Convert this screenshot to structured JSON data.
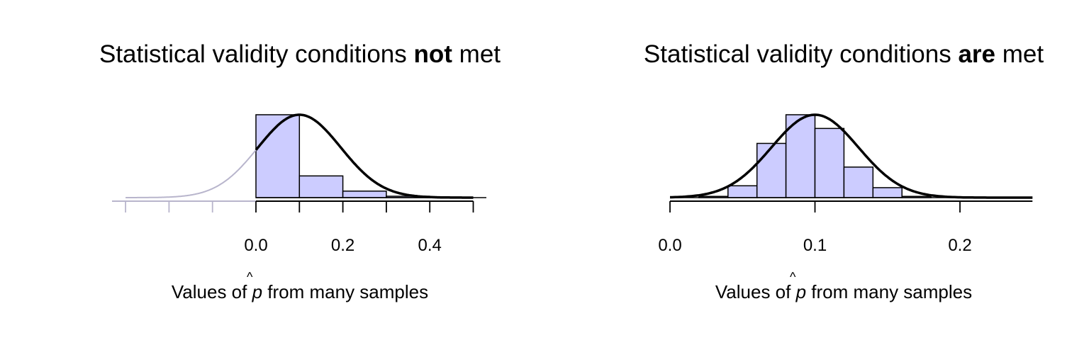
{
  "chart_data": [
    {
      "type": "bar",
      "title_parts": [
        "Statistical validity conditions ",
        "not",
        " met"
      ],
      "xlabel_parts": [
        "Values of ",
        "p",
        " from many samples"
      ],
      "xlabel_hat": "^",
      "bin_edges": [
        0.0,
        0.1,
        0.2,
        0.3,
        0.4
      ],
      "values": [
        4.2,
        1.1,
        0.33,
        0.07
      ],
      "normal_curve": {
        "mean": 0.1,
        "sd": 0.095,
        "x_range": [
          -0.3,
          0.5
        ],
        "gray_below": 0.0
      },
      "xticks": [
        -0.3,
        -0.2,
        -0.1,
        0.0,
        0.1,
        0.2,
        0.3,
        0.4,
        0.5
      ],
      "xtick_labels": {
        "0.0": "0.0",
        "0.2": "0.2",
        "0.4": "0.4"
      },
      "xlim": [
        -0.33,
        0.53
      ],
      "grid": false,
      "colors": {
        "bar_fill": "#ccccff",
        "curve": "#000000",
        "curve_outside": "#b8b5cc",
        "axis_outside": "#b8b5cc"
      }
    },
    {
      "type": "bar",
      "title_parts": [
        "Statistical validity conditions ",
        "are",
        " met"
      ],
      "xlabel_parts": [
        "Values of ",
        "p",
        " from many samples"
      ],
      "xlabel_hat": "^",
      "bin_edges": [
        0.02,
        0.04,
        0.06,
        0.08,
        0.1,
        0.12,
        0.14,
        0.16,
        0.18
      ],
      "values": [
        0.2,
        1.9,
        8.7,
        13.3,
        11.1,
        4.9,
        1.6,
        0.2
      ],
      "normal_curve": {
        "mean": 0.1,
        "sd": 0.03,
        "x_range": [
          0.0,
          0.25
        ]
      },
      "xticks": [
        0.0,
        0.1,
        0.2
      ],
      "xtick_labels": {
        "0.0": "0.0",
        "0.1": "0.1",
        "0.2": "0.2"
      },
      "xlim": [
        0.0,
        0.25
      ],
      "grid": false,
      "colors": {
        "bar_fill": "#ccccff",
        "curve": "#000000"
      }
    }
  ]
}
